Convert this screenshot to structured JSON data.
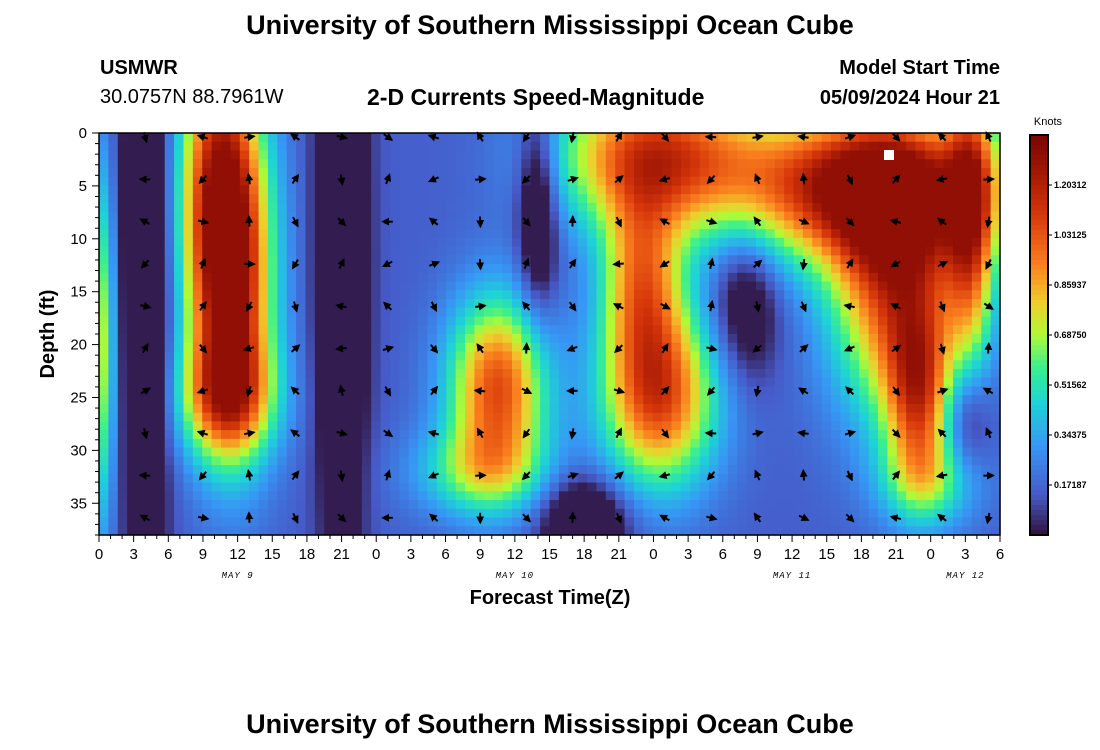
{
  "header": {
    "title": "University of Southern Mississippi Ocean Cube",
    "station": "USMWR",
    "coords": "30.0757N  88.7961W",
    "subtitle": "2-D Currents Speed-Magnitude",
    "model_start_label": "Model Start Time",
    "model_start_value": "05/09/2024 Hour 21"
  },
  "footer": {
    "title": "University of Southern Mississippi Ocean Cube"
  },
  "colorbar": {
    "unit": "Knots",
    "range": [
      0,
      1.375
    ],
    "ticks": [
      "1.20312",
      "1.03125",
      "0.85937",
      "0.68750",
      "0.51562",
      "0.34375",
      "0.17187"
    ],
    "tick_values": [
      1.20312,
      1.03125,
      0.85937,
      0.6875,
      0.51562,
      0.34375,
      0.17187
    ]
  },
  "chart_data": {
    "type": "heatmap",
    "title": "2-D Currents Speed-Magnitude",
    "xlabel": "Forecast Time(Z)",
    "ylabel": "Depth (ft)",
    "x_unit": "forecast hours from 05/09/2024 00Z",
    "xlim": [
      0,
      78
    ],
    "ylim": [
      0,
      38
    ],
    "x_tick_values": [
      0,
      3,
      6,
      9,
      12,
      15,
      18,
      21,
      24,
      27,
      30,
      33,
      36,
      39,
      42,
      45,
      48,
      51,
      54,
      57,
      60,
      63,
      66,
      69,
      72,
      75,
      78
    ],
    "x_tick_labels": [
      "0",
      "3",
      "6",
      "9",
      "12",
      "15",
      "18",
      "21",
      "0",
      "3",
      "6",
      "9",
      "12",
      "15",
      "18",
      "21",
      "0",
      "3",
      "6",
      "9",
      "12",
      "15",
      "18",
      "21",
      "0",
      "3",
      "6"
    ],
    "y_tick_values": [
      0,
      5,
      10,
      15,
      20,
      25,
      30,
      35
    ],
    "y_tick_labels": [
      "0",
      "5",
      "10",
      "15",
      "20",
      "25",
      "30",
      "35"
    ],
    "date_labels": [
      {
        "text": "MAY 9",
        "x": 12
      },
      {
        "text": "MAY 10",
        "x": 36
      },
      {
        "text": "MAY 11",
        "x": 60
      },
      {
        "text": "MAY 12",
        "x": 75
      }
    ],
    "speed_features_knots": [
      {
        "t": 10.5,
        "d": 4,
        "st": 2.5,
        "sd": 10,
        "amp": 0.9
      },
      {
        "t": 11.5,
        "d": 16,
        "st": 2.5,
        "sd": 10,
        "amp": 0.9
      },
      {
        "t": 11,
        "d": 25,
        "st": 3,
        "sd": 4,
        "amp": 0.6
      },
      {
        "t": 34.5,
        "d": 24,
        "st": 3,
        "sd": 6,
        "amp": 0.9
      },
      {
        "t": 33,
        "d": 32,
        "st": 4,
        "sd": 3,
        "amp": 0.4
      },
      {
        "t": 48,
        "d": 2,
        "st": 6,
        "sd": 5,
        "amp": 0.9
      },
      {
        "t": 48.5,
        "d": 25,
        "st": 3.5,
        "sd": 6,
        "amp": 0.9
      },
      {
        "t": 47,
        "d": 14,
        "st": 2.5,
        "sd": 6,
        "amp": 0.7
      },
      {
        "t": 66,
        "d": 5,
        "st": 8,
        "sd": 5,
        "amp": 1.1
      },
      {
        "t": 69,
        "d": 14,
        "st": 4,
        "sd": 9,
        "amp": 0.9
      },
      {
        "t": 71,
        "d": 25,
        "st": 2,
        "sd": 6,
        "amp": 0.7
      },
      {
        "t": 72,
        "d": 33,
        "st": 3,
        "sd": 3,
        "amp": 0.35
      },
      {
        "t": 0,
        "d": 20,
        "st": 1,
        "sd": 12,
        "amp": 0.6
      },
      {
        "t": 75.5,
        "d": 8,
        "st": 1.5,
        "sd": 10,
        "amp": 0.7
      }
    ],
    "low_features_knots": [
      {
        "t": 4,
        "d": 14,
        "st": 1.5,
        "sd": 20,
        "amp": -0.45
      },
      {
        "t": 21,
        "d": 12,
        "st": 1.5,
        "sd": 20,
        "amp": -0.45
      },
      {
        "t": 38,
        "d": 7,
        "st": 1.2,
        "sd": 7,
        "amp": -0.4
      },
      {
        "t": 42,
        "d": 37,
        "st": 2.5,
        "sd": 3,
        "amp": -0.45
      },
      {
        "t": 56,
        "d": 16,
        "st": 2,
        "sd": 5,
        "amp": -0.3
      },
      {
        "t": 75,
        "d": 27,
        "st": 1.5,
        "sd": 4,
        "amp": -0.3
      }
    ],
    "vector_x_hours": [
      4,
      9,
      13,
      17,
      21,
      25,
      29,
      33,
      37,
      41,
      45,
      49,
      53,
      57,
      61,
      65,
      69,
      73,
      77
    ],
    "vector_depths_ft": [
      0,
      4,
      8,
      12,
      16,
      20,
      24,
      28,
      32,
      36
    ]
  }
}
